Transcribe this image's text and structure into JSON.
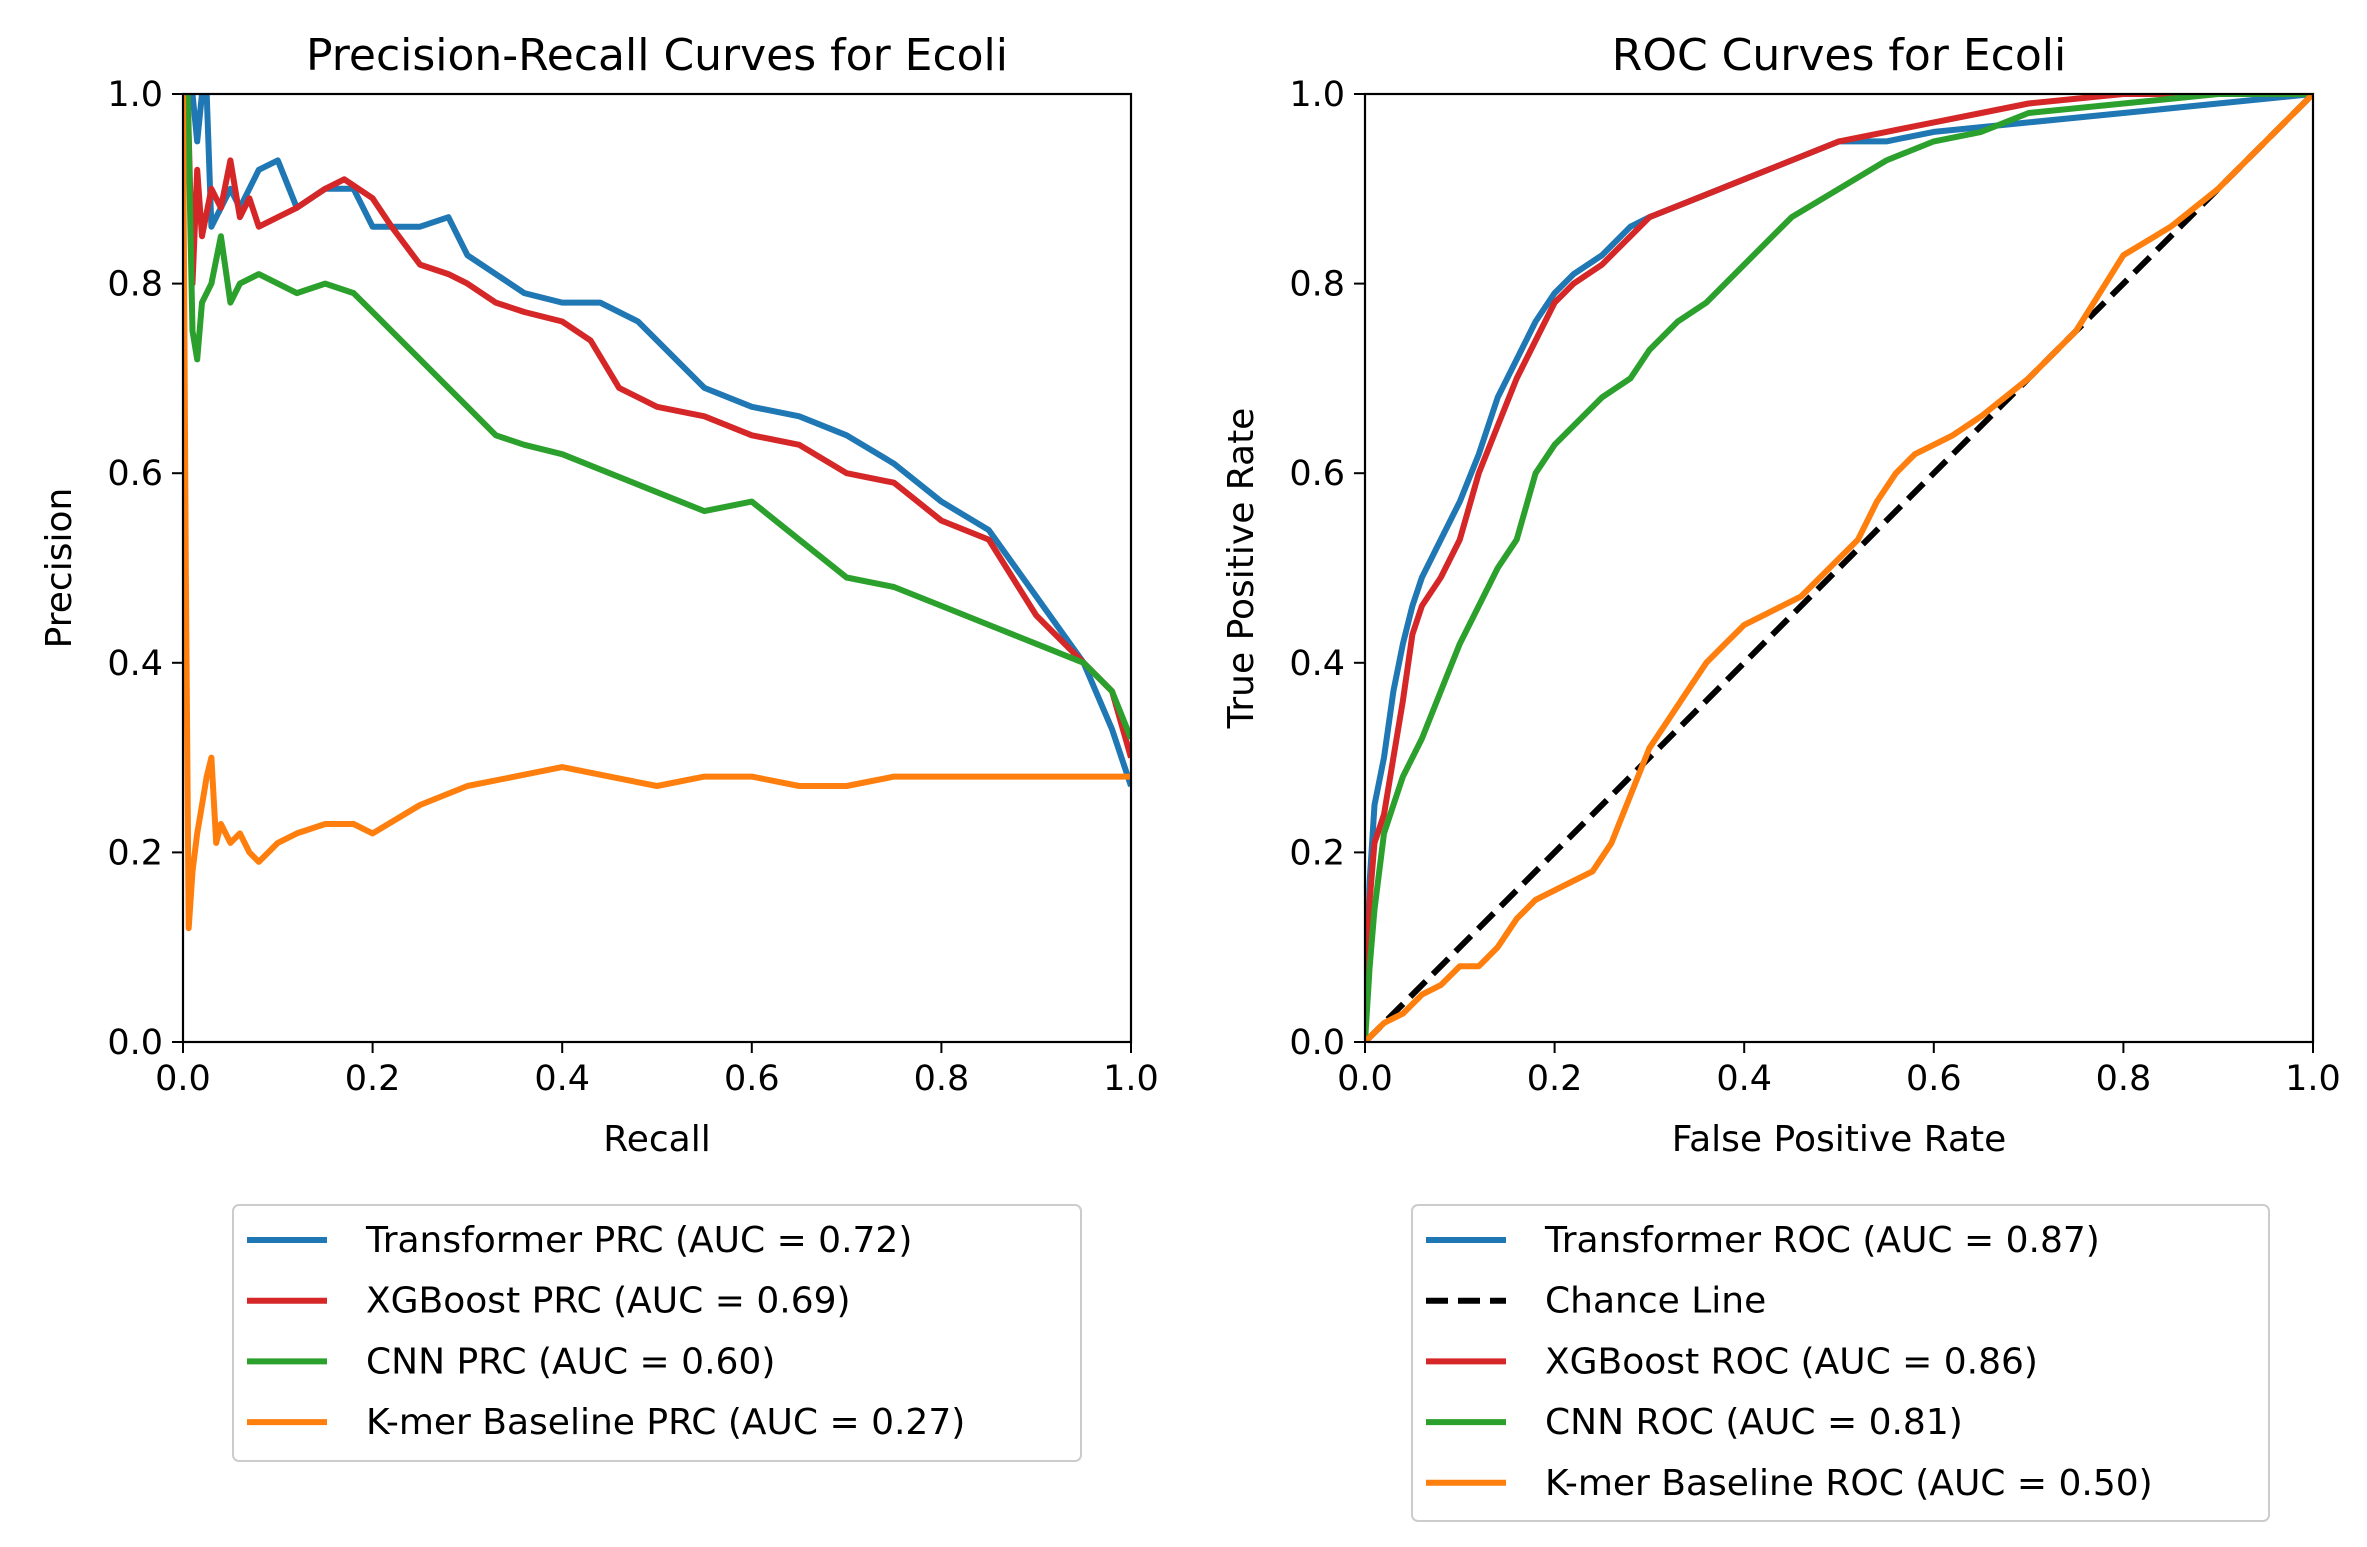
{
  "chart_data": [
    {
      "type": "line",
      "title": "Precision-Recall Curves for Ecoli",
      "xlabel": "Recall",
      "ylabel": "Precision",
      "xlim": [
        0,
        1
      ],
      "ylim": [
        0,
        1
      ],
      "xticks": [
        "0.0",
        "0.2",
        "0.4",
        "0.6",
        "0.8",
        "1.0"
      ],
      "yticks": [
        "0.0",
        "0.2",
        "0.4",
        "0.6",
        "0.8",
        "1.0"
      ],
      "grid": false,
      "legend_position": "below",
      "series": [
        {
          "name": "Transformer PRC (AUC = 0.72)",
          "color": "#1f77b4",
          "x": [
            0.0,
            0.005,
            0.01,
            0.015,
            0.02,
            0.025,
            0.03,
            0.04,
            0.05,
            0.06,
            0.08,
            0.1,
            0.12,
            0.15,
            0.18,
            0.2,
            0.22,
            0.25,
            0.28,
            0.3,
            0.33,
            0.36,
            0.4,
            0.44,
            0.48,
            0.5,
            0.55,
            0.6,
            0.65,
            0.7,
            0.75,
            0.8,
            0.85,
            0.9,
            0.95,
            0.98,
            1.0
          ],
          "y": [
            1.0,
            1.0,
            1.0,
            0.95,
            1.0,
            1.0,
            0.86,
            0.88,
            0.9,
            0.88,
            0.92,
            0.93,
            0.88,
            0.9,
            0.9,
            0.86,
            0.86,
            0.86,
            0.87,
            0.83,
            0.81,
            0.79,
            0.78,
            0.78,
            0.76,
            0.74,
            0.69,
            0.67,
            0.66,
            0.64,
            0.61,
            0.57,
            0.54,
            0.47,
            0.4,
            0.33,
            0.27
          ]
        },
        {
          "name": "XGBoost PRC (AUC = 0.69)",
          "color": "#d62728",
          "x": [
            0.0,
            0.005,
            0.01,
            0.015,
            0.02,
            0.03,
            0.04,
            0.05,
            0.06,
            0.07,
            0.08,
            0.1,
            0.12,
            0.15,
            0.17,
            0.2,
            0.22,
            0.25,
            0.28,
            0.3,
            0.33,
            0.36,
            0.4,
            0.43,
            0.46,
            0.5,
            0.55,
            0.6,
            0.65,
            0.7,
            0.75,
            0.8,
            0.85,
            0.9,
            0.95,
            0.98,
            1.0
          ],
          "y": [
            1.0,
            1.0,
            0.8,
            0.92,
            0.85,
            0.9,
            0.88,
            0.93,
            0.87,
            0.89,
            0.86,
            0.87,
            0.88,
            0.9,
            0.91,
            0.89,
            0.86,
            0.82,
            0.81,
            0.8,
            0.78,
            0.77,
            0.76,
            0.74,
            0.69,
            0.67,
            0.66,
            0.64,
            0.63,
            0.6,
            0.59,
            0.55,
            0.53,
            0.45,
            0.4,
            0.37,
            0.3
          ]
        },
        {
          "name": "CNN PRC (AUC = 0.60)",
          "color": "#2ca02c",
          "x": [
            0.0,
            0.005,
            0.01,
            0.015,
            0.02,
            0.03,
            0.04,
            0.05,
            0.06,
            0.08,
            0.1,
            0.12,
            0.15,
            0.18,
            0.2,
            0.22,
            0.25,
            0.27,
            0.3,
            0.33,
            0.36,
            0.4,
            0.45,
            0.5,
            0.55,
            0.6,
            0.65,
            0.7,
            0.75,
            0.8,
            0.85,
            0.9,
            0.95,
            0.98,
            1.0
          ],
          "y": [
            1.0,
            1.0,
            0.75,
            0.72,
            0.78,
            0.8,
            0.85,
            0.78,
            0.8,
            0.81,
            0.8,
            0.79,
            0.8,
            0.79,
            0.77,
            0.75,
            0.72,
            0.7,
            0.67,
            0.64,
            0.63,
            0.62,
            0.6,
            0.58,
            0.56,
            0.57,
            0.53,
            0.49,
            0.48,
            0.46,
            0.44,
            0.42,
            0.4,
            0.37,
            0.32
          ]
        },
        {
          "name": "K-mer Baseline PRC (AUC = 0.27)",
          "color": "#ff7f0e",
          "x": [
            0.0,
            0.003,
            0.006,
            0.01,
            0.015,
            0.02,
            0.025,
            0.03,
            0.035,
            0.04,
            0.05,
            0.06,
            0.07,
            0.08,
            0.1,
            0.12,
            0.15,
            0.18,
            0.2,
            0.25,
            0.3,
            0.35,
            0.4,
            0.45,
            0.5,
            0.55,
            0.6,
            0.65,
            0.7,
            0.75,
            0.8,
            0.85,
            0.9,
            0.95,
            1.0
          ],
          "y": [
            1.0,
            0.5,
            0.12,
            0.18,
            0.22,
            0.25,
            0.28,
            0.3,
            0.21,
            0.23,
            0.21,
            0.22,
            0.2,
            0.19,
            0.21,
            0.22,
            0.23,
            0.23,
            0.22,
            0.25,
            0.27,
            0.28,
            0.29,
            0.28,
            0.27,
            0.28,
            0.28,
            0.27,
            0.27,
            0.28,
            0.28,
            0.28,
            0.28,
            0.28,
            0.28
          ]
        }
      ]
    },
    {
      "type": "line",
      "title": "ROC Curves for Ecoli",
      "xlabel": "False Positive Rate",
      "ylabel": "True Positive Rate",
      "xlim": [
        0,
        1
      ],
      "ylim": [
        0,
        1
      ],
      "xticks": [
        "0.0",
        "0.2",
        "0.4",
        "0.6",
        "0.8",
        "1.0"
      ],
      "yticks": [
        "0.0",
        "0.2",
        "0.4",
        "0.6",
        "0.8",
        "1.0"
      ],
      "grid": false,
      "legend_position": "below",
      "series": [
        {
          "name": "Transformer ROC (AUC = 0.87)",
          "color": "#1f77b4",
          "dash": "solid",
          "x": [
            0.0,
            0.005,
            0.01,
            0.02,
            0.03,
            0.04,
            0.05,
            0.06,
            0.08,
            0.1,
            0.12,
            0.14,
            0.16,
            0.18,
            0.2,
            0.22,
            0.25,
            0.28,
            0.3,
            0.35,
            0.4,
            0.45,
            0.5,
            0.55,
            0.6,
            0.7,
            0.8,
            0.9,
            1.0
          ],
          "y": [
            0.0,
            0.17,
            0.25,
            0.3,
            0.37,
            0.42,
            0.46,
            0.49,
            0.53,
            0.57,
            0.62,
            0.68,
            0.72,
            0.76,
            0.79,
            0.81,
            0.83,
            0.86,
            0.87,
            0.89,
            0.91,
            0.93,
            0.95,
            0.95,
            0.96,
            0.97,
            0.98,
            0.99,
            1.0
          ]
        },
        {
          "name": "Chance Line",
          "color": "#000000",
          "dash": "dashed",
          "x": [
            0.0,
            1.0
          ],
          "y": [
            0.0,
            1.0
          ]
        },
        {
          "name": "XGBoost ROC (AUC = 0.86)",
          "color": "#d62728",
          "dash": "solid",
          "x": [
            0.0,
            0.005,
            0.01,
            0.02,
            0.03,
            0.04,
            0.05,
            0.06,
            0.08,
            0.1,
            0.12,
            0.14,
            0.16,
            0.18,
            0.2,
            0.22,
            0.25,
            0.28,
            0.3,
            0.35,
            0.4,
            0.45,
            0.5,
            0.55,
            0.6,
            0.65,
            0.7,
            0.8,
            0.9,
            1.0
          ],
          "y": [
            0.0,
            0.15,
            0.21,
            0.24,
            0.3,
            0.36,
            0.43,
            0.46,
            0.49,
            0.53,
            0.6,
            0.65,
            0.7,
            0.74,
            0.78,
            0.8,
            0.82,
            0.85,
            0.87,
            0.89,
            0.91,
            0.93,
            0.95,
            0.96,
            0.97,
            0.98,
            0.99,
            1.0,
            1.0,
            1.0
          ]
        },
        {
          "name": "CNN ROC (AUC = 0.81)",
          "color": "#2ca02c",
          "dash": "solid",
          "x": [
            0.0,
            0.005,
            0.01,
            0.02,
            0.03,
            0.04,
            0.05,
            0.06,
            0.08,
            0.1,
            0.12,
            0.14,
            0.16,
            0.18,
            0.2,
            0.22,
            0.25,
            0.28,
            0.3,
            0.33,
            0.36,
            0.4,
            0.45,
            0.5,
            0.55,
            0.6,
            0.65,
            0.7,
            0.8,
            0.9,
            1.0
          ],
          "y": [
            0.0,
            0.08,
            0.14,
            0.22,
            0.25,
            0.28,
            0.3,
            0.32,
            0.37,
            0.42,
            0.46,
            0.5,
            0.53,
            0.6,
            0.63,
            0.65,
            0.68,
            0.7,
            0.73,
            0.76,
            0.78,
            0.82,
            0.87,
            0.9,
            0.93,
            0.95,
            0.96,
            0.98,
            0.99,
            1.0,
            1.0
          ]
        },
        {
          "name": "K-mer Baseline ROC (AUC = 0.50)",
          "color": "#ff7f0e",
          "dash": "solid",
          "x": [
            0.0,
            0.01,
            0.02,
            0.04,
            0.06,
            0.08,
            0.1,
            0.12,
            0.14,
            0.16,
            0.18,
            0.2,
            0.22,
            0.24,
            0.26,
            0.28,
            0.3,
            0.32,
            0.34,
            0.36,
            0.38,
            0.4,
            0.42,
            0.44,
            0.46,
            0.48,
            0.5,
            0.52,
            0.54,
            0.56,
            0.58,
            0.6,
            0.62,
            0.65,
            0.7,
            0.75,
            0.8,
            0.85,
            0.9,
            0.95,
            1.0
          ],
          "y": [
            0.0,
            0.01,
            0.02,
            0.03,
            0.05,
            0.06,
            0.08,
            0.08,
            0.1,
            0.13,
            0.15,
            0.16,
            0.17,
            0.18,
            0.21,
            0.26,
            0.31,
            0.34,
            0.37,
            0.4,
            0.42,
            0.44,
            0.45,
            0.46,
            0.47,
            0.49,
            0.51,
            0.53,
            0.57,
            0.6,
            0.62,
            0.63,
            0.64,
            0.66,
            0.7,
            0.75,
            0.83,
            0.86,
            0.9,
            0.95,
            1.0
          ]
        }
      ]
    }
  ]
}
